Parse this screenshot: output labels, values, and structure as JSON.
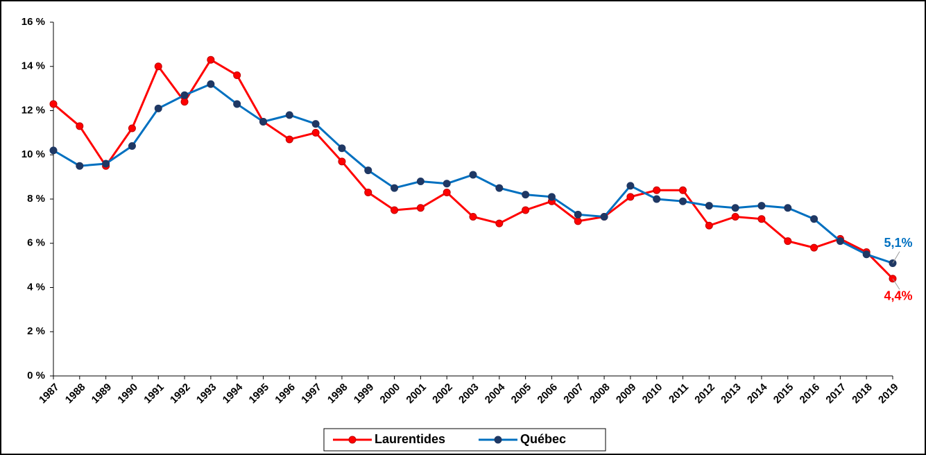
{
  "chart_data": {
    "type": "line",
    "categories": [
      "1987",
      "1988",
      "1989",
      "1990",
      "1991",
      "1992",
      "1993",
      "1994",
      "1995",
      "1996",
      "1997",
      "1998",
      "1999",
      "2000",
      "2001",
      "2002",
      "2003",
      "2004",
      "2005",
      "2006",
      "2007",
      "2008",
      "2009",
      "2010",
      "2011",
      "2012",
      "2013",
      "2014",
      "2015",
      "2016",
      "2017",
      "2018",
      "2019"
    ],
    "series": [
      {
        "name": "Laurentides",
        "color": "#ff0000",
        "values": [
          12.3,
          11.3,
          9.5,
          11.2,
          14.0,
          12.4,
          14.3,
          13.6,
          11.5,
          10.7,
          11.0,
          9.7,
          8.3,
          7.5,
          7.6,
          8.3,
          7.2,
          6.9,
          7.5,
          7.9,
          7.0,
          7.2,
          8.1,
          8.4,
          8.4,
          6.8,
          7.2,
          7.1,
          6.1,
          5.8,
          6.2,
          5.6,
          4.4
        ],
        "value_labels": [
          null,
          null,
          null,
          null,
          null,
          null,
          null,
          null,
          null,
          null,
          null,
          null,
          null,
          null,
          null,
          null,
          null,
          null,
          null,
          null,
          null,
          null,
          null,
          null,
          null,
          null,
          null,
          null,
          null,
          null,
          null,
          null,
          "4,4%"
        ]
      },
      {
        "name": "Québec",
        "color": "#0070c0",
        "values": [
          10.2,
          9.5,
          9.6,
          10.4,
          12.1,
          12.7,
          13.2,
          12.3,
          11.5,
          11.8,
          11.4,
          10.3,
          9.3,
          8.5,
          8.8,
          8.7,
          9.1,
          8.5,
          8.2,
          8.1,
          7.3,
          7.2,
          8.6,
          8.0,
          7.9,
          7.7,
          7.6,
          7.7,
          7.6,
          7.1,
          6.1,
          5.5,
          5.1
        ],
        "value_labels": [
          null,
          null,
          null,
          null,
          null,
          null,
          null,
          null,
          null,
          null,
          null,
          null,
          null,
          null,
          null,
          null,
          null,
          null,
          null,
          null,
          null,
          null,
          null,
          null,
          null,
          null,
          null,
          null,
          null,
          null,
          null,
          null,
          "5,1%"
        ]
      }
    ],
    "ylim": [
      0,
      16
    ],
    "yticks": [
      {
        "value": 0,
        "label": "0 %"
      },
      {
        "value": 2,
        "label": "2 %"
      },
      {
        "value": 4,
        "label": "4 %"
      },
      {
        "value": 6,
        "label": "6 %"
      },
      {
        "value": 8,
        "label": "8 %"
      },
      {
        "value": 10,
        "label": "10 %"
      },
      {
        "value": 12,
        "label": "12 %"
      },
      {
        "value": 14,
        "label": "14 %"
      },
      {
        "value": 16,
        "label": "16 %"
      }
    ],
    "grid": false,
    "legend": "bottom"
  }
}
